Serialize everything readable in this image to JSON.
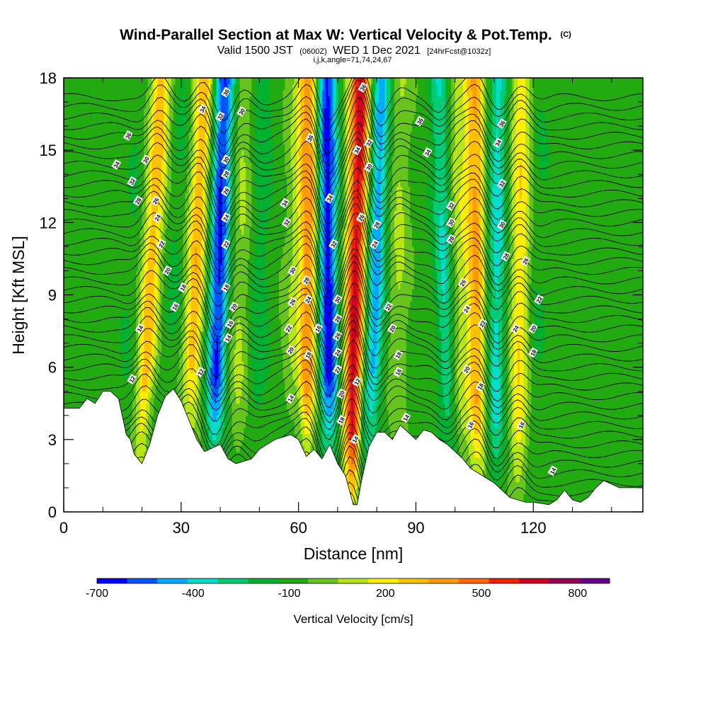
{
  "chart_data": {
    "type": "heatmap",
    "title": "Wind-Parallel Section at Max W: Vertical Velocity & Pot.Temp.",
    "title_unit": "(C)",
    "subtitle_main_a": "Valid 1500 JST",
    "subtitle_small_a": "(0600Z)",
    "subtitle_main_b": "WED 1 Dec 2021",
    "subtitle_small_b": "[24hrFcst@1032z]",
    "subtitle_line2": "i,j,k,angle=71,74,24,67",
    "xlabel": "Distance [nm]",
    "ylabel": "Height [Kft MSL]",
    "xlim": [
      0,
      148
    ],
    "ylim": [
      0,
      18
    ],
    "x_ticks": [
      0,
      30,
      60,
      90,
      120
    ],
    "x_tick_labels": [
      "0",
      "30",
      "60",
      "90",
      "120"
    ],
    "y_ticks": [
      0,
      3,
      6,
      9,
      12,
      15,
      18
    ],
    "y_tick_labels": [
      "0",
      "3",
      "6",
      "9",
      "12",
      "15",
      "18"
    ],
    "colorbar": {
      "title": "Vertical Velocity [cm/s]",
      "tick_labels": [
        "-700",
        "-400",
        "-100",
        "200",
        "500",
        "800"
      ],
      "tick_values": [
        -700,
        -400,
        -100,
        200,
        500,
        800
      ],
      "levels": [
        -700,
        -600,
        -500,
        -400,
        -300,
        -200,
        -100,
        0,
        100,
        200,
        300,
        400,
        500,
        600,
        700,
        800,
        900
      ],
      "colors": [
        "#0000ff",
        "#0055ff",
        "#00aaff",
        "#00ddcc",
        "#00cc77",
        "#00b030",
        "#22aa11",
        "#66c41c",
        "#b8e614",
        "#ffee00",
        "#ffc000",
        "#ff9a00",
        "#ff6600",
        "#ee2200",
        "#cc0022",
        "#990055",
        "#660088"
      ]
    },
    "velocity_features": [
      {
        "x_bottom": 14,
        "x_top": 20,
        "w": -60
      },
      {
        "x_bottom": 19,
        "x_top": 25,
        "w": 400
      },
      {
        "x_bottom": 25,
        "x_top": 31,
        "w": -80
      },
      {
        "x_bottom": 31,
        "x_top": 36,
        "w": 420
      },
      {
        "x_bottom": 38,
        "x_top": 41,
        "w": -580
      },
      {
        "x_bottom": 44,
        "x_top": 46,
        "w": 150
      },
      {
        "x_bottom": 49,
        "x_top": 51,
        "w": -120
      },
      {
        "x_bottom": 57,
        "x_top": 60,
        "w": 120
      },
      {
        "x_bottom": 62,
        "x_top": 63,
        "w": 500
      },
      {
        "x_bottom": 68,
        "x_top": 67,
        "w": -620
      },
      {
        "x_bottom": 73,
        "x_top": 76,
        "w": 780
      },
      {
        "x_bottom": 78,
        "x_top": 81,
        "w": -420
      },
      {
        "x_bottom": 85,
        "x_top": 86,
        "w": 150
      },
      {
        "x_bottom": 99,
        "x_top": 96,
        "w": -280
      },
      {
        "x_bottom": 102,
        "x_top": 100,
        "w": 200
      },
      {
        "x_bottom": 106,
        "x_top": 105,
        "w": 450
      },
      {
        "x_bottom": 110,
        "x_top": 111,
        "w": -300
      },
      {
        "x_bottom": 116,
        "x_top": 117,
        "w": 320
      },
      {
        "x_bottom": 120,
        "x_top": 122,
        "w": -60
      }
    ],
    "terrain": [
      [
        0,
        4.3
      ],
      [
        4,
        4.3
      ],
      [
        6,
        4.7
      ],
      [
        8,
        4.5
      ],
      [
        10,
        5.0
      ],
      [
        12,
        5.0
      ],
      [
        14,
        4.7
      ],
      [
        16,
        3.2
      ],
      [
        17,
        3.0
      ],
      [
        18,
        2.4
      ],
      [
        20,
        2.0
      ],
      [
        22,
        2.8
      ],
      [
        24,
        4.0
      ],
      [
        26,
        4.8
      ],
      [
        28,
        5.1
      ],
      [
        30,
        4.6
      ],
      [
        32,
        3.8
      ],
      [
        34,
        3.0
      ],
      [
        36,
        2.5
      ],
      [
        40,
        2.8
      ],
      [
        42,
        2.2
      ],
      [
        44,
        2.0
      ],
      [
        48,
        2.2
      ],
      [
        50,
        2.6
      ],
      [
        54,
        3.0
      ],
      [
        58,
        3.2
      ],
      [
        60,
        3.0
      ],
      [
        62,
        2.3
      ],
      [
        64,
        2.6
      ],
      [
        66,
        2.2
      ],
      [
        68,
        2.8
      ],
      [
        70,
        2.0
      ],
      [
        72,
        1.5
      ],
      [
        73,
        0.9
      ],
      [
        74,
        0.3
      ],
      [
        75,
        0.3
      ],
      [
        76,
        1.2
      ],
      [
        78,
        2.7
      ],
      [
        80,
        3.3
      ],
      [
        82,
        3.3
      ],
      [
        84,
        3.0
      ],
      [
        86,
        3.6
      ],
      [
        88,
        3.3
      ],
      [
        90,
        3.0
      ],
      [
        92,
        3.4
      ],
      [
        94,
        3.3
      ],
      [
        96,
        3.0
      ],
      [
        98,
        2.8
      ],
      [
        100,
        2.5
      ],
      [
        102,
        2.2
      ],
      [
        104,
        1.8
      ],
      [
        106,
        1.6
      ],
      [
        110,
        1.2
      ],
      [
        112,
        0.9
      ],
      [
        114,
        0.6
      ],
      [
        116,
        0.5
      ],
      [
        118,
        0.4
      ],
      [
        120,
        0.4
      ],
      [
        124,
        0.3
      ],
      [
        126,
        0.5
      ],
      [
        128,
        0.9
      ],
      [
        130,
        0.5
      ],
      [
        132,
        0.4
      ],
      [
        134,
        0.6
      ],
      [
        136,
        1.0
      ],
      [
        138,
        1.3
      ],
      [
        142,
        1.0
      ],
      [
        148,
        1.0
      ]
    ],
    "theta_labels": [
      {
        "text": "12",
        "x": 17.5,
        "y": 5.5
      },
      {
        "text": "12",
        "x": 35,
        "y": 5.8
      },
      {
        "text": "14",
        "x": 19.5,
        "y": 7.6
      },
      {
        "text": "16",
        "x": 28.5,
        "y": 8.5
      },
      {
        "text": "18",
        "x": 30.5,
        "y": 9.3
      },
      {
        "text": "20",
        "x": 26.5,
        "y": 10.0
      },
      {
        "text": "22",
        "x": 25,
        "y": 11.1
      },
      {
        "text": "24",
        "x": 24,
        "y": 12.2
      },
      {
        "text": "26",
        "x": 23.5,
        "y": 12.9
      },
      {
        "text": "28",
        "x": 19,
        "y": 12.9
      },
      {
        "text": "30",
        "x": 21,
        "y": 14.6
      },
      {
        "text": "32",
        "x": 17.5,
        "y": 13.7
      },
      {
        "text": "34",
        "x": 13.5,
        "y": 14.4
      },
      {
        "text": "36",
        "x": 16.5,
        "y": 15.6
      },
      {
        "text": "34",
        "x": 35.5,
        "y": 16.7
      },
      {
        "text": "32",
        "x": 40,
        "y": 16.4
      },
      {
        "text": "36",
        "x": 41.5,
        "y": 17.4
      },
      {
        "text": "30",
        "x": 45.5,
        "y": 16.6
      },
      {
        "text": "30",
        "x": 41.5,
        "y": 14.6
      },
      {
        "text": "28",
        "x": 41.5,
        "y": 14.0
      },
      {
        "text": "26",
        "x": 41.5,
        "y": 13.3
      },
      {
        "text": "24",
        "x": 41.5,
        "y": 12.2
      },
      {
        "text": "22",
        "x": 41.5,
        "y": 11.1
      },
      {
        "text": "18",
        "x": 41.5,
        "y": 9.3
      },
      {
        "text": "20",
        "x": 43.5,
        "y": 8.5
      },
      {
        "text": "16",
        "x": 42.5,
        "y": 7.8
      },
      {
        "text": "14",
        "x": 42,
        "y": 7.2
      },
      {
        "text": "34",
        "x": 56.5,
        "y": 12.8
      },
      {
        "text": "32",
        "x": 57,
        "y": 12.0
      },
      {
        "text": "30",
        "x": 58.5,
        "y": 10.0
      },
      {
        "text": "28",
        "x": 62,
        "y": 9.6
      },
      {
        "text": "26",
        "x": 58.5,
        "y": 8.7
      },
      {
        "text": "24",
        "x": 62.5,
        "y": 8.8
      },
      {
        "text": "22",
        "x": 57.5,
        "y": 7.6
      },
      {
        "text": "20",
        "x": 58,
        "y": 6.7
      },
      {
        "text": "18",
        "x": 62.5,
        "y": 6.5
      },
      {
        "text": "16",
        "x": 65,
        "y": 7.6
      },
      {
        "text": "14",
        "x": 58,
        "y": 4.7
      },
      {
        "text": "36",
        "x": 63,
        "y": 15.5
      },
      {
        "text": "34",
        "x": 68,
        "y": 13.0
      },
      {
        "text": "32",
        "x": 69,
        "y": 11.1
      },
      {
        "text": "30",
        "x": 70,
        "y": 8.8
      },
      {
        "text": "28",
        "x": 70,
        "y": 8.0
      },
      {
        "text": "26",
        "x": 70,
        "y": 7.3
      },
      {
        "text": "24",
        "x": 70,
        "y": 6.6
      },
      {
        "text": "22",
        "x": 70,
        "y": 5.9
      },
      {
        "text": "20",
        "x": 71,
        "y": 4.9
      },
      {
        "text": "18",
        "x": 71,
        "y": 3.8
      },
      {
        "text": "14",
        "x": 74.5,
        "y": 3.0
      },
      {
        "text": "12",
        "x": 75,
        "y": 5.4
      },
      {
        "text": "36",
        "x": 76.5,
        "y": 17.6
      },
      {
        "text": "34",
        "x": 75,
        "y": 15.0
      },
      {
        "text": "32",
        "x": 78,
        "y": 15.3
      },
      {
        "text": "30",
        "x": 78,
        "y": 14.3
      },
      {
        "text": "26",
        "x": 76,
        "y": 12.2
      },
      {
        "text": "28",
        "x": 80,
        "y": 11.9
      },
      {
        "text": "24",
        "x": 79.5,
        "y": 11.1
      },
      {
        "text": "22",
        "x": 83,
        "y": 8.5
      },
      {
        "text": "20",
        "x": 84,
        "y": 7.6
      },
      {
        "text": "18",
        "x": 85.5,
        "y": 6.5
      },
      {
        "text": "16",
        "x": 85.5,
        "y": 5.8
      },
      {
        "text": "14",
        "x": 87.5,
        "y": 3.9
      },
      {
        "text": "36",
        "x": 91,
        "y": 16.2
      },
      {
        "text": "34",
        "x": 93,
        "y": 14.9
      },
      {
        "text": "32",
        "x": 99,
        "y": 12.7
      },
      {
        "text": "30",
        "x": 99,
        "y": 12.0
      },
      {
        "text": "28",
        "x": 99,
        "y": 11.3
      },
      {
        "text": "26",
        "x": 102,
        "y": 9.5
      },
      {
        "text": "24",
        "x": 103,
        "y": 8.4
      },
      {
        "text": "22",
        "x": 107,
        "y": 7.8
      },
      {
        "text": "20",
        "x": 103,
        "y": 5.9
      },
      {
        "text": "18",
        "x": 106.5,
        "y": 5.2
      },
      {
        "text": "16",
        "x": 104,
        "y": 3.6
      },
      {
        "text": "36",
        "x": 112,
        "y": 16.1
      },
      {
        "text": "34",
        "x": 111,
        "y": 15.3
      },
      {
        "text": "32",
        "x": 112,
        "y": 13.6
      },
      {
        "text": "30",
        "x": 112,
        "y": 11.9
      },
      {
        "text": "28",
        "x": 113,
        "y": 10.6
      },
      {
        "text": "26",
        "x": 118,
        "y": 10.4
      },
      {
        "text": "22",
        "x": 121.5,
        "y": 8.8
      },
      {
        "text": "24",
        "x": 115.5,
        "y": 7.6
      },
      {
        "text": "20",
        "x": 120,
        "y": 7.6
      },
      {
        "text": "18",
        "x": 120,
        "y": 6.6
      },
      {
        "text": "16",
        "x": 117,
        "y": 3.6
      },
      {
        "text": "14",
        "x": 125,
        "y": 1.7
      }
    ]
  }
}
